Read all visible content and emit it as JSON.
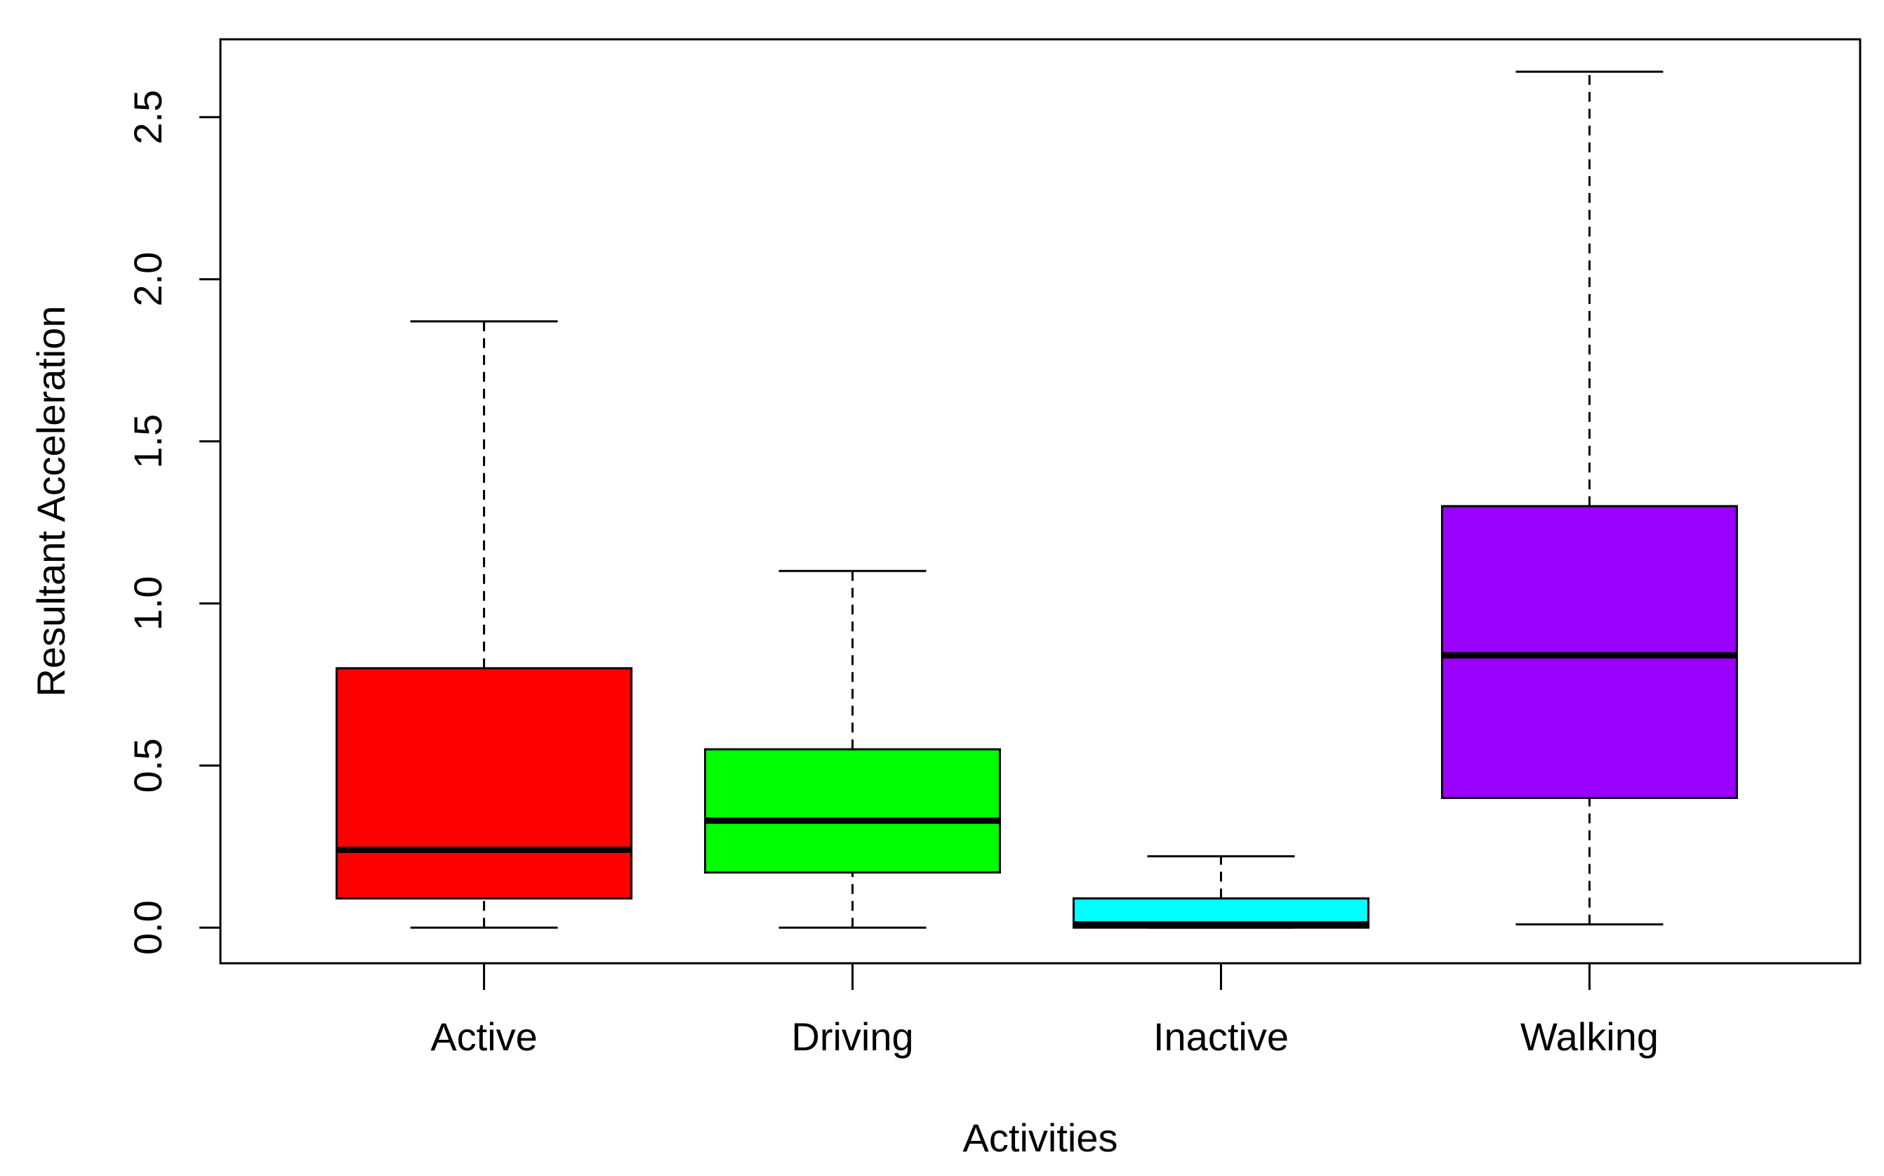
{
  "chart_data": {
    "type": "boxplot",
    "title": "",
    "xlabel": "Activities",
    "ylabel": "Resultant Acceleration",
    "ylim": [
      -0.11,
      2.74
    ],
    "yticks": [
      "0.0",
      "0.5",
      "1.0",
      "1.5",
      "2.0",
      "2.5"
    ],
    "ytick_values": [
      0.0,
      0.5,
      1.0,
      1.5,
      2.0,
      2.5
    ],
    "categories": [
      "Active",
      "Driving",
      "Inactive",
      "Walking"
    ],
    "boxes": [
      {
        "name": "Active",
        "min": 0.0,
        "q1": 0.09,
        "median": 0.24,
        "q3": 0.8,
        "max": 1.87,
        "color": "#ff0000"
      },
      {
        "name": "Driving",
        "min": 0.0,
        "q1": 0.17,
        "median": 0.33,
        "q3": 0.55,
        "max": 1.1,
        "color": "#00ff00"
      },
      {
        "name": "Inactive",
        "min": 0.0,
        "q1": 0.0,
        "median": 0.01,
        "q3": 0.09,
        "max": 0.22,
        "color": "#00ffff"
      },
      {
        "name": "Walking",
        "min": 0.01,
        "q1": 0.4,
        "median": 0.84,
        "q3": 1.3,
        "max": 2.64,
        "color": "#9900ff"
      }
    ],
    "grid": false,
    "legend": "none"
  }
}
